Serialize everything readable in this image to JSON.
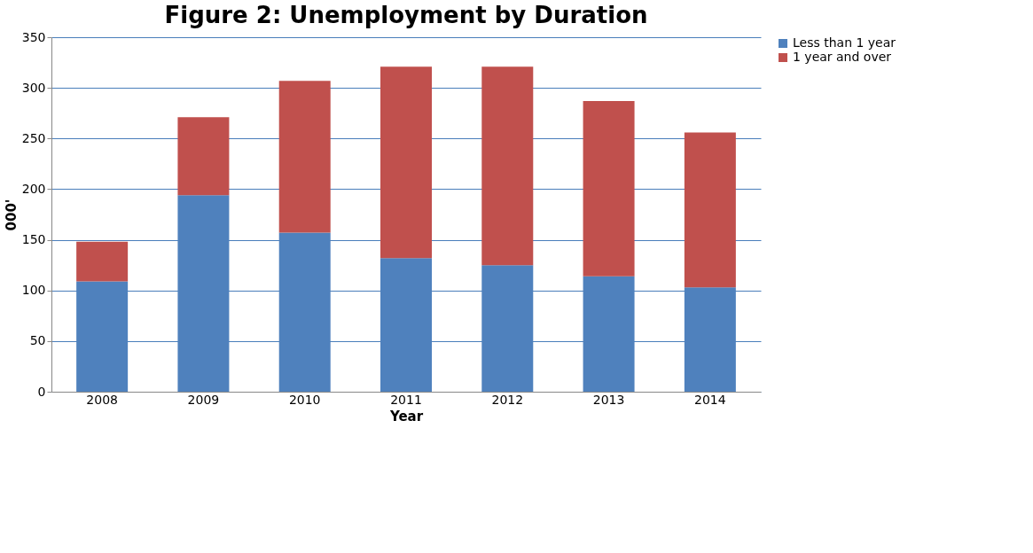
{
  "chart_data": {
    "type": "bar",
    "title": "Figure 2: Unemployment by Duration",
    "xlabel": "Year",
    "ylabel": "000'",
    "categories": [
      "2008",
      "2009",
      "2010",
      "2011",
      "2012",
      "2013",
      "2014"
    ],
    "stacked": true,
    "series": [
      {
        "name": "Less than 1 year",
        "color": "#4f81bd",
        "values": [
          109,
          194,
          157,
          132,
          125,
          114,
          103
        ]
      },
      {
        "name": "1 year and over",
        "color": "#c0504d",
        "values": [
          39,
          77,
          150,
          189,
          196,
          173,
          153
        ]
      }
    ],
    "ylim": [
      0,
      350
    ],
    "yticks": [
      0,
      50,
      100,
      150,
      200,
      250,
      300,
      350
    ],
    "grid": "y",
    "legend": "right"
  }
}
